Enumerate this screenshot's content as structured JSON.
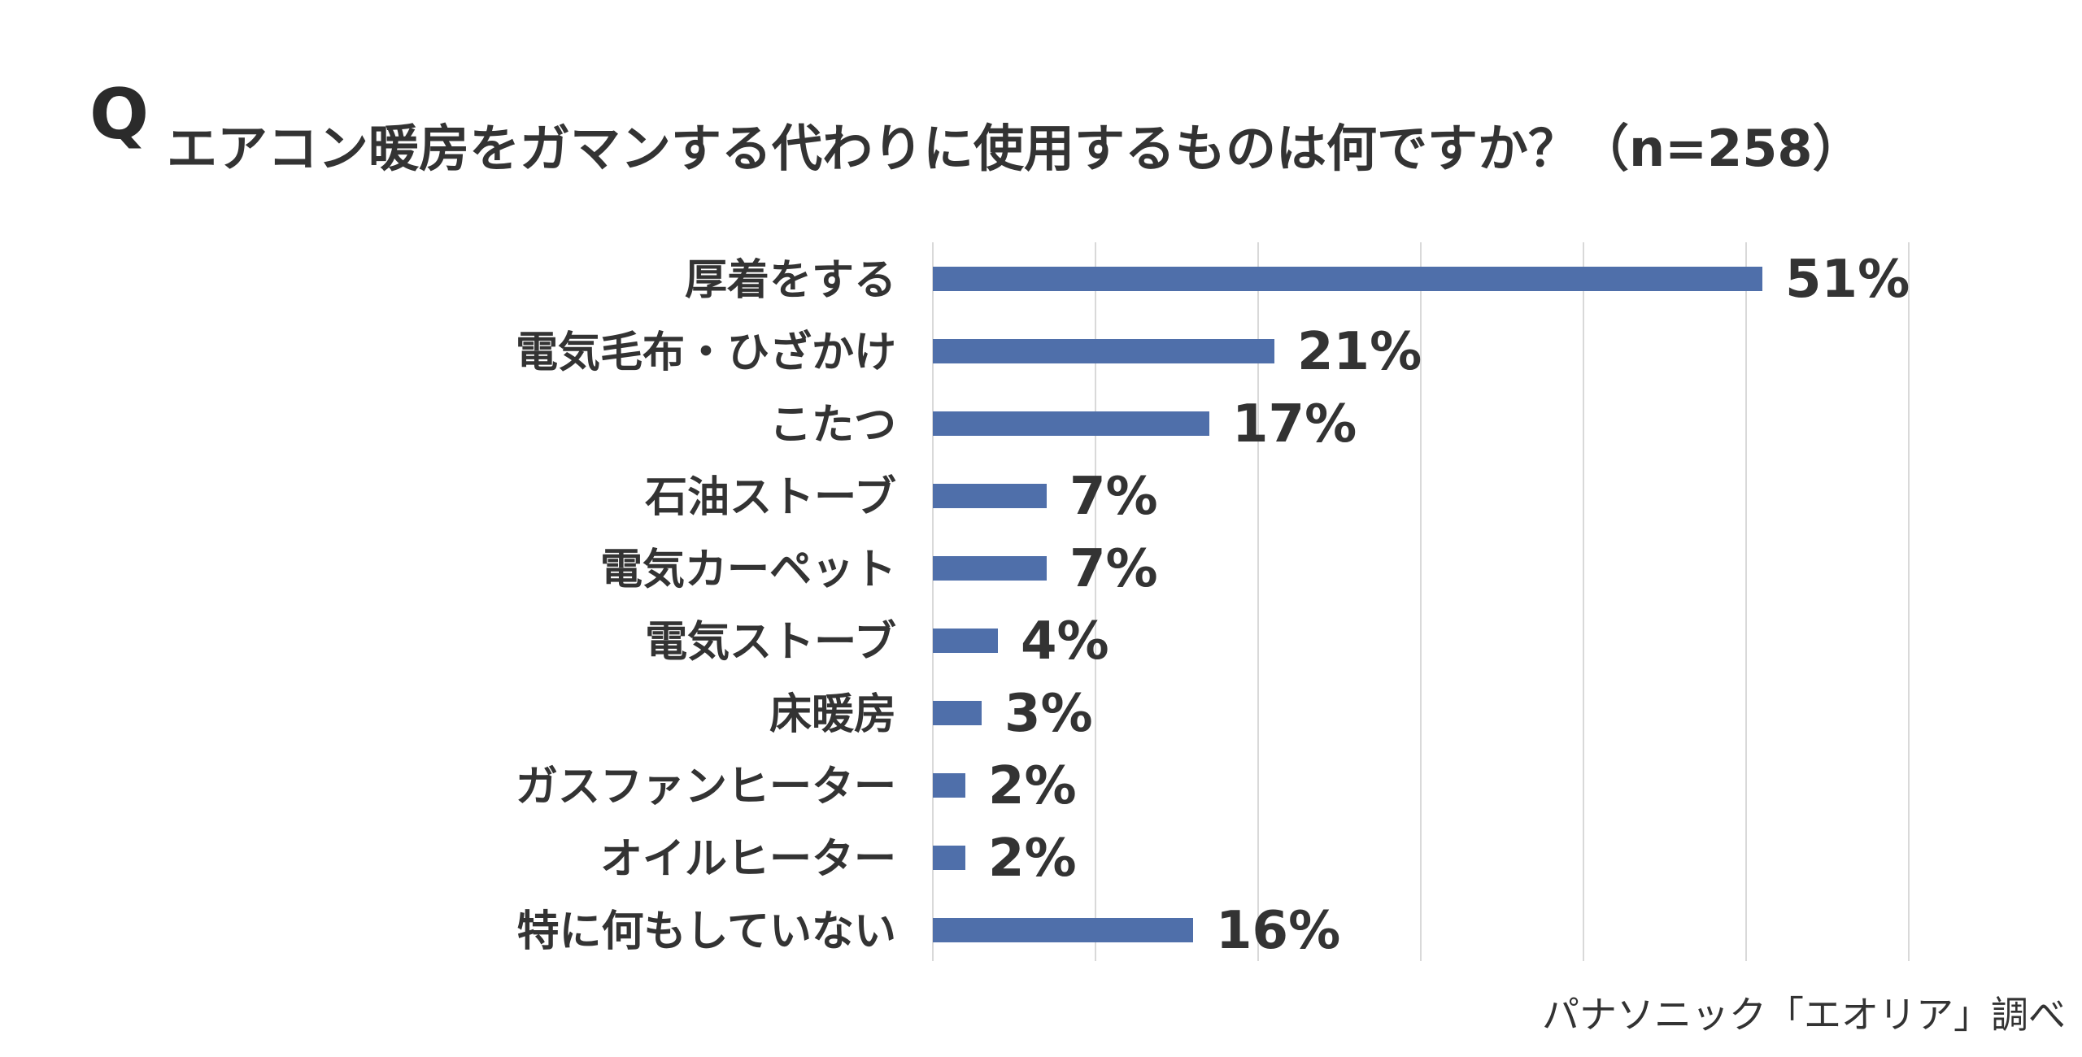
{
  "title": {
    "q_mark": "Q",
    "text": "エアコン暖房をガマンする代わりに使用するものは何ですか？（n=258）"
  },
  "source": "パナソニック「エオリア」調べ",
  "colors": {
    "bar": "#4f6faa",
    "grid": "#d9d9d9",
    "text": "#333333"
  },
  "chart_data": {
    "type": "bar",
    "orientation": "horizontal",
    "categories": [
      "厚着をする",
      "電気毛布・ひざかけ",
      "こたつ",
      "石油ストーブ",
      "電気カーペット",
      "電気ストーブ",
      "床暖房",
      "ガスファンヒーター",
      "オイルヒーター",
      "特に何もしていない"
    ],
    "values": [
      51,
      21,
      17,
      7,
      7,
      4,
      3,
      2,
      2,
      16
    ],
    "value_labels": [
      "51%",
      "21%",
      "17%",
      "7%",
      "7%",
      "4%",
      "3%",
      "2%",
      "2%",
      "16%"
    ],
    "xlim": [
      0,
      60
    ],
    "unit": "%",
    "grid": true
  }
}
